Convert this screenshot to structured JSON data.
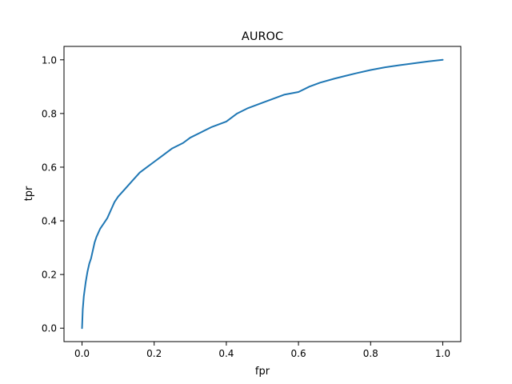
{
  "chart_data": {
    "type": "line",
    "title": "AUROC",
    "xlabel": "fpr",
    "ylabel": "tpr",
    "xlim": [
      -0.05,
      1.05
    ],
    "ylim": [
      -0.05,
      1.05
    ],
    "x_ticks": [
      0.0,
      0.2,
      0.4,
      0.6,
      0.8,
      1.0
    ],
    "x_tick_labels": [
      "0.0",
      "0.2",
      "0.4",
      "0.6",
      "0.8",
      "1.0"
    ],
    "y_ticks": [
      0.0,
      0.2,
      0.4,
      0.6,
      0.8,
      1.0
    ],
    "y_tick_labels": [
      "0.0",
      "0.2",
      "0.4",
      "0.6",
      "0.8",
      "1.0"
    ],
    "grid": false,
    "legend": "none",
    "series": [
      {
        "color": "#1f77b4",
        "points": [
          [
            0.0,
            0.0
          ],
          [
            0.002,
            0.07
          ],
          [
            0.005,
            0.12
          ],
          [
            0.01,
            0.17
          ],
          [
            0.015,
            0.21
          ],
          [
            0.02,
            0.24
          ],
          [
            0.025,
            0.26
          ],
          [
            0.03,
            0.29
          ],
          [
            0.035,
            0.32
          ],
          [
            0.04,
            0.34
          ],
          [
            0.05,
            0.37
          ],
          [
            0.06,
            0.39
          ],
          [
            0.07,
            0.41
          ],
          [
            0.08,
            0.44
          ],
          [
            0.09,
            0.47
          ],
          [
            0.1,
            0.49
          ],
          [
            0.12,
            0.52
          ],
          [
            0.14,
            0.55
          ],
          [
            0.16,
            0.58
          ],
          [
            0.18,
            0.6
          ],
          [
            0.2,
            0.62
          ],
          [
            0.22,
            0.64
          ],
          [
            0.25,
            0.67
          ],
          [
            0.28,
            0.69
          ],
          [
            0.3,
            0.71
          ],
          [
            0.33,
            0.73
          ],
          [
            0.36,
            0.75
          ],
          [
            0.4,
            0.77
          ],
          [
            0.43,
            0.8
          ],
          [
            0.46,
            0.82
          ],
          [
            0.5,
            0.84
          ],
          [
            0.53,
            0.855
          ],
          [
            0.56,
            0.87
          ],
          [
            0.6,
            0.88
          ],
          [
            0.63,
            0.9
          ],
          [
            0.66,
            0.915
          ],
          [
            0.7,
            0.93
          ],
          [
            0.73,
            0.94
          ],
          [
            0.76,
            0.95
          ],
          [
            0.8,
            0.962
          ],
          [
            0.84,
            0.972
          ],
          [
            0.88,
            0.98
          ],
          [
            0.92,
            0.987
          ],
          [
            0.96,
            0.994
          ],
          [
            1.0,
            1.0
          ]
        ]
      }
    ]
  }
}
